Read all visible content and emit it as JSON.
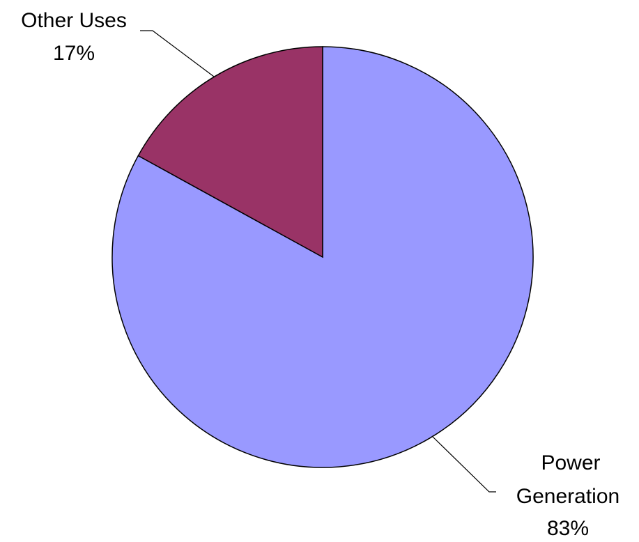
{
  "chart_data": {
    "type": "pie",
    "slices": [
      {
        "label": "Power Generation",
        "value": 83,
        "value_label": "83%",
        "color": "#9999FF"
      },
      {
        "label": "Other Uses",
        "value": 17,
        "value_label": "17%",
        "color": "#993366"
      }
    ],
    "start_angle_deg": 0,
    "direction": "clockwise",
    "outline_color": "#000000",
    "legend": "none"
  }
}
